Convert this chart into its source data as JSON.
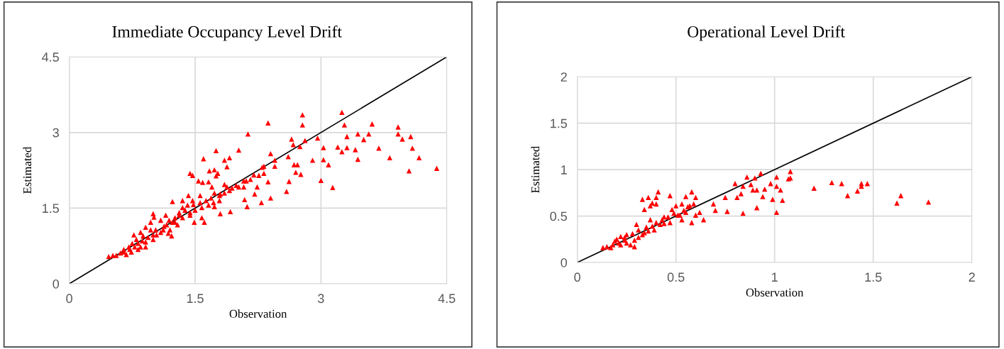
{
  "chart_data": [
    {
      "type": "scatter",
      "title": "Immediate Occupancy Level Drift",
      "xlabel": "Observation",
      "ylabel": "Estimated",
      "xlim": [
        0,
        4.5
      ],
      "ylim": [
        0,
        4.5
      ],
      "xticks": [
        0,
        1.5,
        3,
        4.5
      ],
      "yticks": [
        0,
        1.5,
        3,
        4.5
      ],
      "grid": true,
      "series": [
        {
          "marker": "triangle",
          "color": "#ff0000",
          "x": [
            2.78,
            3.25,
            2.37,
            2.78,
            3.28,
            3.61,
            3.92,
            3.92,
            4.07,
            3.97,
            3.44,
            3.57,
            3.51,
            3.31,
            2.13,
            2.65,
            2.67,
            2.81,
            2.96,
            2.75,
            3.03,
            3.2,
            3.25,
            3.31,
            3.41,
            3.69,
            4.09,
            3.44,
            3.82,
            4.17,
            4.05,
            4.38,
            2.9,
            3.03,
            3.09,
            3.0,
            3.14,
            2.61,
            2.68,
            2.72,
            2.7,
            2.76,
            2.62,
            2.59,
            2.4,
            2.45,
            2.45,
            2.3,
            2.32,
            2.26,
            2.37,
            2.16,
            2.11,
            2.08,
            2.24,
            2.21,
            2.4,
            2.09,
            2.12,
            2.29,
            1.92,
            1.8,
            2.02,
            1.75,
            1.6,
            1.85,
            1.91,
            1.88,
            1.67,
            1.73,
            1.75,
            1.77,
            1.44,
            1.47,
            1.54,
            1.59,
            1.66,
            1.7,
            1.85,
            1.88,
            1.99,
            1.73,
            1.8,
            1.56,
            1.42,
            1.35,
            1.23,
            1.48,
            1.56,
            1.63,
            1.72,
            1.73,
            1.49,
            1.61,
            1.58,
            1.44,
            1.38,
            1.31,
            1.26,
            1.22,
            1.16,
            1.09,
            1.0,
            1.01,
            0.97,
            0.91,
            0.85,
            1.12,
            1.18,
            1.04,
            0.94,
            0.87,
            0.8,
            0.75,
            0.71,
            0.82,
            0.74,
            0.65,
            0.61,
            0.56,
            0.47,
            0.68,
            0.85,
            0.91,
            1.0,
            1.09,
            1.29,
            1.35,
            1.23,
            1.2,
            1.41,
            1.47,
            1.69,
            1.79,
            1.91,
            2.02,
            1.44,
            1.35,
            1.15,
            1.03,
            0.78,
            0.65,
            0.52,
            0.88,
            0.97,
            1.13,
            1.26,
            1.19,
            1.31,
            1.5,
            1.58,
            1.66,
            1.79,
            1.85,
            1.94,
            2.08,
            2.2,
            2.32,
            0.82,
            0.72,
            0.91,
            0.77,
            1.0
          ],
          "values": [
            3.35,
            3.4,
            3.19,
            3.15,
            3.15,
            3.17,
            3.11,
            2.97,
            2.92,
            2.87,
            2.97,
            2.97,
            2.86,
            2.92,
            2.97,
            2.87,
            2.76,
            2.84,
            2.89,
            2.72,
            2.7,
            2.71,
            2.62,
            2.7,
            2.66,
            2.69,
            2.69,
            2.47,
            2.5,
            2.5,
            2.24,
            2.29,
            2.45,
            2.46,
            2.36,
            2.05,
            1.91,
            2.52,
            2.36,
            2.36,
            2.21,
            2.17,
            2.03,
            1.83,
            2.58,
            2.45,
            2.33,
            2.31,
            2.19,
            2.15,
            2.02,
            2.07,
            2.04,
            1.92,
            1.92,
            1.78,
            1.7,
            1.67,
            1.53,
            1.61,
            1.43,
            1.39,
            2.65,
            2.64,
            2.48,
            2.45,
            2.5,
            2.32,
            2.24,
            2.26,
            2.14,
            2.19,
            2.19,
            2.15,
            2.04,
            2.01,
            2.02,
            1.92,
            1.97,
            1.92,
            1.95,
            1.8,
            1.78,
            1.75,
            1.75,
            1.65,
            1.63,
            1.57,
            1.61,
            1.65,
            1.61,
            1.53,
            1.22,
            1.22,
            1.31,
            1.41,
            1.46,
            1.41,
            1.31,
            0.95,
            1.17,
            1.26,
            1.39,
            1.32,
            1.22,
            1.12,
            1.02,
            1.07,
            1.0,
            0.97,
            0.92,
            0.85,
            0.88,
            0.8,
            0.73,
            0.68,
            0.63,
            0.68,
            0.61,
            0.56,
            0.54,
            0.58,
            0.73,
            0.83,
            0.88,
            1.02,
            1.17,
            1.31,
            1.22,
            1.07,
            1.56,
            1.65,
            1.7,
            1.75,
            1.85,
            1.92,
            1.36,
            1.51,
            1.36,
            1.07,
            0.73,
            0.63,
            0.56,
            0.95,
            1.07,
            1.14,
            1.22,
            1.26,
            1.36,
            1.46,
            1.51,
            1.56,
            1.65,
            1.8,
            1.9,
            2.04,
            2.16,
            2.33,
            0.8,
            0.68,
            0.73,
            0.97,
            0.97
          ]
        },
        {
          "type": "line",
          "color": "#000000",
          "x": [
            0,
            4.5
          ],
          "values": [
            0,
            4.5
          ]
        }
      ]
    },
    {
      "type": "scatter",
      "title": "Operational Level Drift",
      "xlabel": "Observation",
      "ylabel": "Estimated",
      "xlim": [
        0,
        2
      ],
      "ylim": [
        0,
        2
      ],
      "xticks": [
        0,
        0.5,
        1,
        1.5,
        2
      ],
      "yticks": [
        0,
        0.5,
        1,
        1.5,
        2
      ],
      "grid": true,
      "series": [
        {
          "marker": "triangle",
          "color": "#ff0000",
          "x": [
            1.08,
            1.07,
            1.08,
            1.01,
            1.01,
            1.03,
            1.04,
            0.99,
            1.01,
            0.93,
            0.9,
            0.86,
            0.8,
            0.84,
            0.88,
            0.89,
            0.91,
            0.95,
            0.98,
            0.94,
            0.83,
            0.81,
            0.75,
            0.69,
            0.7,
            0.76,
            0.84,
            0.91,
            1.2,
            1.29,
            1.34,
            1.44,
            1.47,
            1.44,
            1.42,
            1.37,
            1.64,
            1.62,
            1.78,
            0.33,
            0.36,
            0.34,
            0.38,
            0.4,
            0.41,
            0.4,
            0.47,
            0.55,
            0.58,
            0.6,
            0.37,
            0.59,
            0.57,
            0.62,
            0.64,
            0.58,
            0.53,
            0.5,
            0.48,
            0.51,
            0.46,
            0.43,
            0.4,
            0.37,
            0.38,
            0.35,
            0.31,
            0.3,
            0.28,
            0.25,
            0.24,
            0.21,
            0.18,
            0.15,
            0.13,
            0.17,
            0.2,
            0.27,
            0.29,
            0.33,
            0.36,
            0.42,
            0.44,
            0.47,
            0.52,
            0.55,
            0.6,
            0.56,
            0.54,
            0.22,
            0.25,
            0.31,
            0.39,
            0.22,
            0.24,
            0.34,
            0.44,
            0.49,
            0.53,
            0.29,
            0.19
          ],
          "values": [
            0.98,
            0.9,
            0.91,
            0.92,
            0.82,
            0.78,
            0.67,
            0.68,
            0.54,
            0.96,
            0.91,
            0.92,
            0.85,
            0.82,
            0.84,
            0.78,
            0.78,
            0.79,
            0.85,
            0.71,
            0.74,
            0.7,
            0.7,
            0.63,
            0.56,
            0.55,
            0.53,
            0.59,
            0.8,
            0.86,
            0.85,
            0.85,
            0.85,
            0.82,
            0.77,
            0.72,
            0.72,
            0.64,
            0.65,
            0.68,
            0.7,
            0.57,
            0.64,
            0.7,
            0.76,
            0.63,
            0.72,
            0.71,
            0.76,
            0.7,
            0.61,
            0.63,
            0.61,
            0.54,
            0.46,
            0.43,
            0.46,
            0.61,
            0.57,
            0.51,
            0.49,
            0.46,
            0.43,
            0.46,
            0.39,
            0.38,
            0.35,
            0.41,
            0.31,
            0.3,
            0.24,
            0.21,
            0.19,
            0.17,
            0.16,
            0.16,
            0.25,
            0.19,
            0.24,
            0.3,
            0.34,
            0.41,
            0.42,
            0.43,
            0.51,
            0.54,
            0.51,
            0.6,
            0.56,
            0.19,
            0.21,
            0.27,
            0.35,
            0.28,
            0.27,
            0.32,
            0.49,
            0.53,
            0.63,
            0.17,
            0.23
          ]
        },
        {
          "type": "line",
          "color": "#000000",
          "x": [
            0,
            2
          ],
          "values": [
            0,
            2
          ]
        }
      ]
    }
  ]
}
